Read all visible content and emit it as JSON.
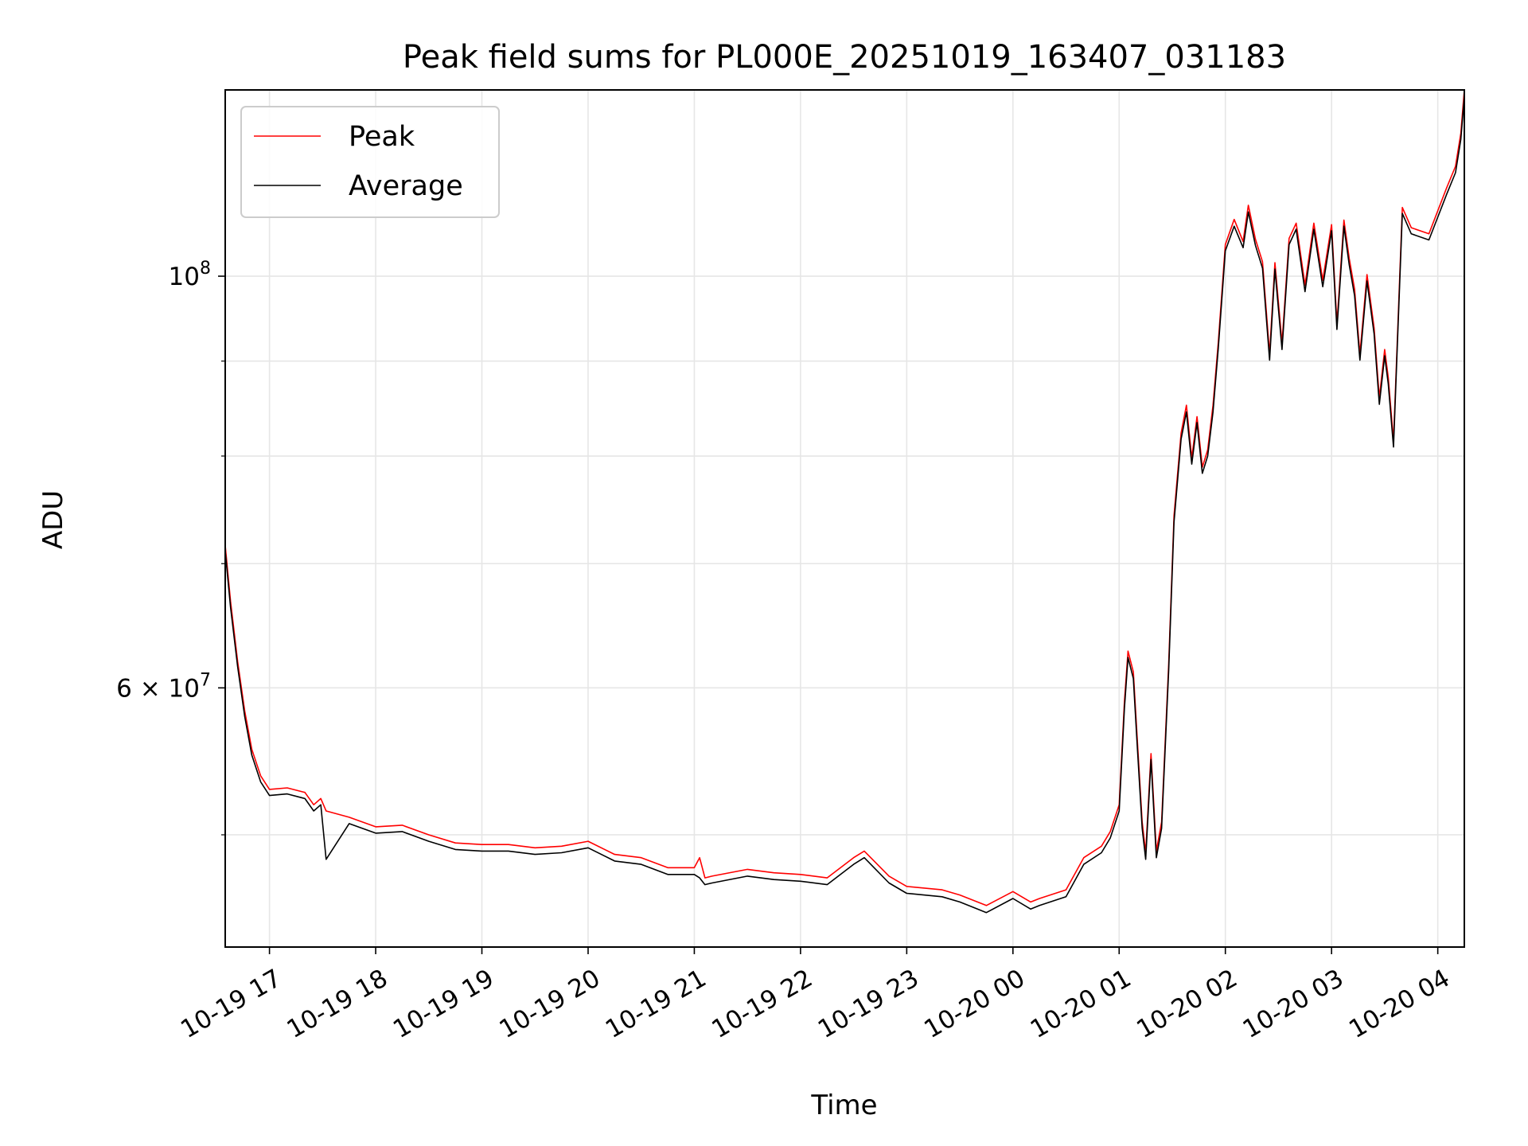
{
  "chart_data": {
    "type": "line",
    "title": "Peak field sums for PL000E_20251019_163407_031183",
    "xlabel": "Time",
    "ylabel": "ADU",
    "yscale": "log",
    "ylim": [
      43500000,
      126000000
    ],
    "x_range": [
      "2025-10-19 16:35",
      "2025-10-20 04:15"
    ],
    "x_ticks": [
      "10-19 17",
      "10-19 18",
      "10-19 19",
      "10-19 20",
      "10-19 21",
      "10-19 22",
      "10-19 23",
      "10-20 00",
      "10-20 01",
      "10-20 02",
      "10-20 03",
      "10-20 04"
    ],
    "y_ticks_major": [
      {
        "value": 60000000,
        "mantissa": "6",
        "base": "10",
        "exp": "7"
      },
      {
        "value": 100000000,
        "mantissa": "",
        "base": "10",
        "exp": "8"
      }
    ],
    "y_ticks_minor": [
      50000000,
      70000000,
      80000000,
      90000000
    ],
    "grid": true,
    "legend_position": "upper-left",
    "colors": {
      "peak": "#ff0000",
      "average": "#000000",
      "grid": "#e6e6e6"
    },
    "series": [
      {
        "name": "Peak",
        "x": [
          "2025-10-19 16:35",
          "2025-10-19 16:38",
          "2025-10-19 16:42",
          "2025-10-19 16:46",
          "2025-10-19 16:50",
          "2025-10-19 16:55",
          "2025-10-19 17:00",
          "2025-10-19 17:10",
          "2025-10-19 17:20",
          "2025-10-19 17:25",
          "2025-10-19 17:29",
          "2025-10-19 17:32",
          "2025-10-19 17:45",
          "2025-10-19 18:00",
          "2025-10-19 18:15",
          "2025-10-19 18:30",
          "2025-10-19 18:45",
          "2025-10-19 19:00",
          "2025-10-19 19:15",
          "2025-10-19 19:30",
          "2025-10-19 19:45",
          "2025-10-19 20:00",
          "2025-10-19 20:15",
          "2025-10-19 20:30",
          "2025-10-19 20:45",
          "2025-10-19 21:00",
          "2025-10-19 21:03",
          "2025-10-19 21:06",
          "2025-10-19 21:10",
          "2025-10-19 21:30",
          "2025-10-19 21:45",
          "2025-10-19 22:00",
          "2025-10-19 22:15",
          "2025-10-19 22:30",
          "2025-10-19 22:36",
          "2025-10-19 22:50",
          "2025-10-19 23:00",
          "2025-10-19 23:20",
          "2025-10-19 23:30",
          "2025-10-19 23:40",
          "2025-10-19 23:45",
          "2025-10-20 00:00",
          "2025-10-20 00:10",
          "2025-10-20 00:15",
          "2025-10-20 00:30",
          "2025-10-20 00:40",
          "2025-10-20 00:50",
          "2025-10-20 00:55",
          "2025-10-20 01:00",
          "2025-10-20 01:03",
          "2025-10-20 01:05",
          "2025-10-20 01:08",
          "2025-10-20 01:10",
          "2025-10-20 01:13",
          "2025-10-20 01:15",
          "2025-10-20 01:18",
          "2025-10-20 01:21",
          "2025-10-20 01:24",
          "2025-10-20 01:28",
          "2025-10-20 01:31",
          "2025-10-20 01:35",
          "2025-10-20 01:38",
          "2025-10-20 01:41",
          "2025-10-20 01:44",
          "2025-10-20 01:47",
          "2025-10-20 01:50",
          "2025-10-20 01:53",
          "2025-10-20 01:56",
          "2025-10-20 02:00",
          "2025-10-20 02:05",
          "2025-10-20 02:10",
          "2025-10-20 02:13",
          "2025-10-20 02:17",
          "2025-10-20 02:21",
          "2025-10-20 02:25",
          "2025-10-20 02:28",
          "2025-10-20 02:32",
          "2025-10-20 02:36",
          "2025-10-20 02:40",
          "2025-10-20 02:45",
          "2025-10-20 02:50",
          "2025-10-20 02:55",
          "2025-10-20 03:00",
          "2025-10-20 03:03",
          "2025-10-20 03:07",
          "2025-10-20 03:10",
          "2025-10-20 03:13",
          "2025-10-20 03:16",
          "2025-10-20 03:20",
          "2025-10-20 03:24",
          "2025-10-20 03:27",
          "2025-10-20 03:30",
          "2025-10-20 03:32",
          "2025-10-20 03:35",
          "2025-10-20 03:40",
          "2025-10-20 03:45",
          "2025-10-20 03:55",
          "2025-10-20 04:05",
          "2025-10-20 04:10",
          "2025-10-20 04:13",
          "2025-10-20 04:15"
        ],
        "y": [
          71600000,
          66800000,
          62000000,
          58300000,
          55600000,
          53800000,
          52900000,
          53000000,
          52700000,
          51900000,
          52300000,
          51500000,
          51100000,
          50500000,
          50600000,
          50000000,
          49500000,
          49400000,
          49400000,
          49200000,
          49300000,
          49600000,
          48800000,
          48600000,
          48000000,
          48000000,
          48600000,
          47400000,
          47500000,
          47900000,
          47700000,
          47600000,
          47400000,
          48600000,
          49000000,
          47500000,
          46900000,
          46700000,
          46400000,
          46000000,
          45800000,
          46600000,
          46000000,
          46200000,
          46700000,
          48600000,
          49300000,
          50200000,
          51900000,
          59000000,
          62800000,
          61200000,
          56800000,
          50800000,
          48900000,
          55300000,
          49000000,
          50800000,
          61800000,
          74300000,
          82300000,
          85200000,
          79800000,
          84000000,
          78900000,
          80600000,
          85200000,
          92100000,
          104000000,
          107300000,
          104400000,
          109200000,
          104700000,
          101800000,
          90800000,
          101700000,
          92000000,
          104800000,
          106800000,
          98900000,
          106800000,
          99500000,
          106600000,
          94300000,
          107200000,
          102200000,
          98400000,
          90800000,
          100200000,
          93800000,
          86000000,
          91300000,
          88200000,
          81500000,
          108900000,
          106200000,
          105400000,
          111600000,
          114600000,
          119400000,
          126000000
        ]
      },
      {
        "name": "Average",
        "x": [
          "2025-10-19 16:35",
          "2025-10-19 16:38",
          "2025-10-19 16:42",
          "2025-10-19 16:46",
          "2025-10-19 16:50",
          "2025-10-19 16:55",
          "2025-10-19 17:00",
          "2025-10-19 17:10",
          "2025-10-19 17:20",
          "2025-10-19 17:25",
          "2025-10-19 17:29",
          "2025-10-19 17:32",
          "2025-10-19 17:45",
          "2025-10-19 18:00",
          "2025-10-19 18:15",
          "2025-10-19 18:30",
          "2025-10-19 18:45",
          "2025-10-19 19:00",
          "2025-10-19 19:15",
          "2025-10-19 19:30",
          "2025-10-19 19:45",
          "2025-10-19 20:00",
          "2025-10-19 20:15",
          "2025-10-19 20:30",
          "2025-10-19 20:45",
          "2025-10-19 21:00",
          "2025-10-19 21:03",
          "2025-10-19 21:06",
          "2025-10-19 21:10",
          "2025-10-19 21:30",
          "2025-10-19 21:45",
          "2025-10-19 22:00",
          "2025-10-19 22:15",
          "2025-10-19 22:30",
          "2025-10-19 22:36",
          "2025-10-19 22:50",
          "2025-10-19 23:00",
          "2025-10-19 23:20",
          "2025-10-19 23:30",
          "2025-10-19 23:40",
          "2025-10-19 23:45",
          "2025-10-20 00:00",
          "2025-10-20 00:10",
          "2025-10-20 00:15",
          "2025-10-20 00:30",
          "2025-10-20 00:40",
          "2025-10-20 00:50",
          "2025-10-20 00:55",
          "2025-10-20 01:00",
          "2025-10-20 01:03",
          "2025-10-20 01:05",
          "2025-10-20 01:08",
          "2025-10-20 01:10",
          "2025-10-20 01:13",
          "2025-10-20 01:15",
          "2025-10-20 01:18",
          "2025-10-20 01:21",
          "2025-10-20 01:24",
          "2025-10-20 01:28",
          "2025-10-20 01:31",
          "2025-10-20 01:35",
          "2025-10-20 01:38",
          "2025-10-20 01:41",
          "2025-10-20 01:44",
          "2025-10-20 01:47",
          "2025-10-20 01:50",
          "2025-10-20 01:53",
          "2025-10-20 01:56",
          "2025-10-20 02:00",
          "2025-10-20 02:05",
          "2025-10-20 02:10",
          "2025-10-20 02:13",
          "2025-10-20 02:17",
          "2025-10-20 02:21",
          "2025-10-20 02:25",
          "2025-10-20 02:28",
          "2025-10-20 02:32",
          "2025-10-20 02:36",
          "2025-10-20 02:40",
          "2025-10-20 02:45",
          "2025-10-20 02:50",
          "2025-10-20 02:55",
          "2025-10-20 03:00",
          "2025-10-20 03:03",
          "2025-10-20 03:07",
          "2025-10-20 03:10",
          "2025-10-20 03:13",
          "2025-10-20 03:16",
          "2025-10-20 03:20",
          "2025-10-20 03:24",
          "2025-10-20 03:27",
          "2025-10-20 03:30",
          "2025-10-20 03:32",
          "2025-10-20 03:35",
          "2025-10-20 03:40",
          "2025-10-20 03:45",
          "2025-10-20 03:55",
          "2025-10-20 04:05",
          "2025-10-20 04:10",
          "2025-10-20 04:13",
          "2025-10-20 04:15"
        ],
        "y": [
          71100000,
          66300000,
          61600000,
          57900000,
          55200000,
          53400000,
          52500000,
          52600000,
          52300000,
          51500000,
          51900000,
          48500000,
          50700000,
          50100000,
          50200000,
          49600000,
          49100000,
          49000000,
          49000000,
          48800000,
          48900000,
          49200000,
          48400000,
          48200000,
          47600000,
          47600000,
          47400000,
          47000000,
          47100000,
          47500000,
          47300000,
          47200000,
          47000000,
          48200000,
          48600000,
          47100000,
          46500000,
          46300000,
          46000000,
          45600000,
          45400000,
          46200000,
          45600000,
          45800000,
          46300000,
          48200000,
          48900000,
          49800000,
          51500000,
          58500000,
          62300000,
          60700000,
          56300000,
          50400000,
          48500000,
          54900000,
          48600000,
          50400000,
          61300000,
          73700000,
          81700000,
          84500000,
          79200000,
          83400000,
          78300000,
          80000000,
          84500000,
          91400000,
          103200000,
          106400000,
          103600000,
          108300000,
          103900000,
          101000000,
          90100000,
          100900000,
          91300000,
          104000000,
          106000000,
          98100000,
          106000000,
          98700000,
          105800000,
          93600000,
          106400000,
          101400000,
          97600000,
          90100000,
          99400000,
          93100000,
          85300000,
          90600000,
          87500000,
          80900000,
          108100000,
          105400000,
          104600000,
          110700000,
          113700000,
          118500000,
          125000000
        ]
      }
    ]
  }
}
